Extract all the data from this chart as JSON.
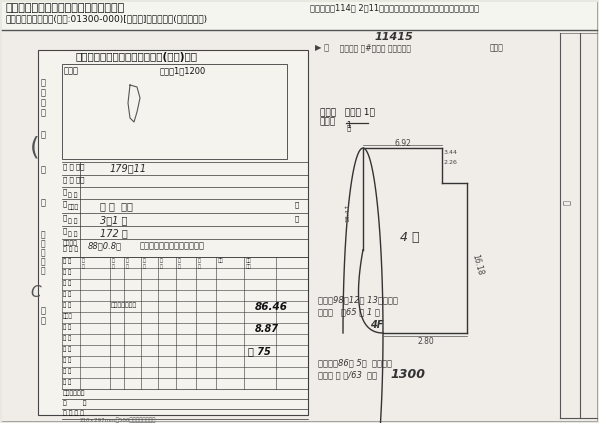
{
  "bg_color": "#e8e8e0",
  "paper_color": "#f0ede8",
  "title_line1": "北北桃地政電傳全功能地籍資料查詢系統",
  "title_line2": "新北市中和區復興段(建號:01300-000)[第二類]建物平面圖(已縮小列印)",
  "date_text": "查詢日期：114年 2月11日（如需登記謄本，請向地政事務所申請。）",
  "doc_title": "臺北縣中和地政事務所建物復丈(勘測)結果",
  "location_box_title": "位置圖",
  "location_scale": "比例尺1：1200",
  "floor_plan_label": "平面圖   比例尺 1：",
  "land_number": "179．11",
  "street_name": "中 城  板路",
  "street_number": "3．1 巷",
  "door_number": "172 號",
  "reg_date": "88年0.8月",
  "reg_doc": "日北中地測字１３４３０．號",
  "fourth_floor_type": "本國大樓鋼住宅",
  "area1": "86.46",
  "area2": "8.87",
  "area3": "粉 75",
  "dim1": "6.92",
  "dim2": "2.80",
  "dim3": "16.18",
  "room_label": "4 層",
  "bottom_note": "210×297mm用500磅道林原圖紙印製",
  "handwritten_top": "11415",
  "hw_anno1": "甲 南客員 段#共車月 小段建號第",
  "hw_anno2": "號接次",
  "base_note1": "門牌為98年12月 13日門整編",
  "base_note2": "更文為   路65 巷 1 號",
  "base_note3": "4F",
  "base_note4": "基地建於86年 5月  日回查測",
  "base_note5": "發文為 複 號/63  地址",
  "base_note6": "1300"
}
